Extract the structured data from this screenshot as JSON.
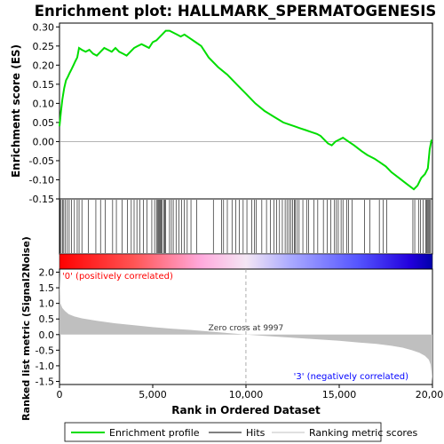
{
  "chart_data": {
    "title": "Enrichment plot: HALLMARK_SPERMATOGENESIS",
    "type": "line",
    "top_panel": {
      "ylabel": "Enrichment score (ES)",
      "ylim": [
        -0.15,
        0.31
      ],
      "yticks": [
        "0.30",
        "0.25",
        "0.20",
        "0.15",
        "0.10",
        "0.05",
        "0.00",
        "-0.05",
        "-0.10",
        "-0.15"
      ],
      "ytick_values": [
        0.3,
        0.25,
        0.2,
        0.15,
        0.1,
        0.05,
        0.0,
        -0.05,
        -0.1,
        -0.15
      ],
      "series": [
        {
          "name": "Enrichment profile",
          "color": "#00dd00",
          "x": [
            0,
            80,
            150,
            250,
            350,
            450,
            550,
            650,
            750,
            850,
            950,
            1050,
            1200,
            1400,
            1600,
            1800,
            2000,
            2200,
            2400,
            2600,
            2800,
            3000,
            3200,
            3400,
            3600,
            3800,
            4000,
            4200,
            4400,
            4600,
            4800,
            5000,
            5200,
            5400,
            5500,
            5700,
            5900,
            6100,
            6300,
            6500,
            6700,
            7000,
            7300,
            7600,
            8000,
            8500,
            9000,
            9500,
            10000,
            10500,
            11000,
            11500,
            12000,
            12300,
            12600,
            12900,
            13200,
            13500,
            13800,
            14000,
            14200,
            14400,
            14600,
            14800,
            15000,
            15200,
            15500,
            15800,
            16200,
            16500,
            16900,
            17200,
            17500,
            17800,
            18200,
            18600,
            19000,
            19200,
            19400,
            19600,
            19750,
            19850,
            19950
          ],
          "y": [
            0.04,
            0.08,
            0.11,
            0.14,
            0.16,
            0.17,
            0.18,
            0.19,
            0.2,
            0.21,
            0.22,
            0.245,
            0.24,
            0.235,
            0.24,
            0.23,
            0.225,
            0.235,
            0.245,
            0.24,
            0.235,
            0.245,
            0.235,
            0.23,
            0.225,
            0.235,
            0.245,
            0.25,
            0.255,
            0.25,
            0.245,
            0.26,
            0.265,
            0.275,
            0.28,
            0.29,
            0.29,
            0.285,
            0.28,
            0.275,
            0.28,
            0.27,
            0.26,
            0.25,
            0.22,
            0.195,
            0.175,
            0.15,
            0.125,
            0.1,
            0.08,
            0.065,
            0.05,
            0.045,
            0.04,
            0.035,
            0.03,
            0.025,
            0.02,
            0.015,
            0.005,
            -0.005,
            -0.01,
            0.0,
            0.005,
            0.01,
            0.0,
            -0.01,
            -0.025,
            -0.035,
            -0.045,
            -0.055,
            -0.065,
            -0.08,
            -0.095,
            -0.11,
            -0.125,
            -0.115,
            -0.095,
            -0.085,
            -0.07,
            -0.02,
            0.005
          ]
        }
      ]
    },
    "hits": [
      30,
      90,
      160,
      230,
      320,
      420,
      520,
      640,
      800,
      950,
      1050,
      1200,
      1550,
      1950,
      2200,
      2450,
      2850,
      3050,
      3350,
      3650,
      3850,
      4000,
      4150,
      4300,
      4500,
      4700,
      4950,
      5100,
      5200,
      5250,
      5300,
      5350,
      5400,
      5450,
      5500,
      5600,
      5650,
      5700,
      5900,
      6000,
      6100,
      6250,
      6400,
      6550,
      6700,
      6850,
      7050,
      7350,
      8250,
      8700,
      8800,
      9000,
      9250,
      9450,
      9650,
      9850,
      10050,
      10300,
      10450,
      10550,
      10850,
      11100,
      11300,
      11500,
      11650,
      11800,
      11950,
      12100,
      12200,
      12300,
      12400,
      12500,
      12600,
      12650,
      12750,
      12850,
      13050,
      13250,
      13350,
      13650,
      13850,
      14150,
      14350,
      14550,
      14750,
      14850,
      14950,
      15100,
      15200,
      15400,
      15500,
      15700,
      16350,
      16650,
      17150,
      17350,
      17550,
      18950,
      19050,
      19250,
      19350,
      19500,
      19650,
      19700,
      19750,
      19800,
      19850,
      19900
    ],
    "ranking": {
      "ylabel": "Ranked list metric (Signal2Noise)",
      "xlabel": "Rank in Ordered Dataset",
      "ylim": [
        -1.6,
        2.1
      ],
      "yticks": [
        "2.0",
        "1.5",
        "1.0",
        "0.5",
        "0.0",
        "-0.5",
        "-1.0",
        "-1.5"
      ],
      "ytick_values": [
        2.0,
        1.5,
        1.0,
        0.5,
        0.0,
        -0.5,
        -1.0,
        -1.5
      ],
      "x": [
        0,
        50,
        150,
        300,
        500,
        800,
        1200,
        2000,
        3000,
        4000,
        5000,
        6000,
        7000,
        8000,
        9000,
        9997,
        11000,
        12000,
        13000,
        14000,
        15000,
        16000,
        17000,
        17800,
        18400,
        18900,
        19300,
        19600,
        19800,
        19900,
        19950,
        20000
      ],
      "values": [
        1.95,
        1.0,
        0.85,
        0.75,
        0.65,
        0.58,
        0.52,
        0.44,
        0.36,
        0.3,
        0.24,
        0.19,
        0.15,
        0.1,
        0.05,
        0.0,
        -0.04,
        -0.08,
        -0.12,
        -0.16,
        -0.2,
        -0.25,
        -0.3,
        -0.36,
        -0.42,
        -0.5,
        -0.58,
        -0.68,
        -0.8,
        -0.95,
        -1.2,
        -1.5
      ],
      "zero_cross_label": "Zero cross at 9997",
      "zero_cross_x": 9997,
      "pos_label": "'0' (positively correlated)",
      "neg_label": "'3' (negatively correlated)",
      "pos_color": "#ff0000",
      "neg_color": "#0000ff"
    },
    "xlim": [
      0,
      20000
    ],
    "xticks": [
      "0",
      "5,000",
      "10,000",
      "15,000",
      "20,000"
    ],
    "xtick_values": [
      0,
      5000,
      10000,
      15000,
      20000
    ],
    "legend": {
      "placement": "bottom",
      "items": [
        {
          "label": "Enrichment profile",
          "color": "#00dd00"
        },
        {
          "label": "Hits",
          "color": "#000000"
        },
        {
          "label": "Ranking metric scores",
          "color": "#c0c0c0"
        }
      ]
    }
  }
}
